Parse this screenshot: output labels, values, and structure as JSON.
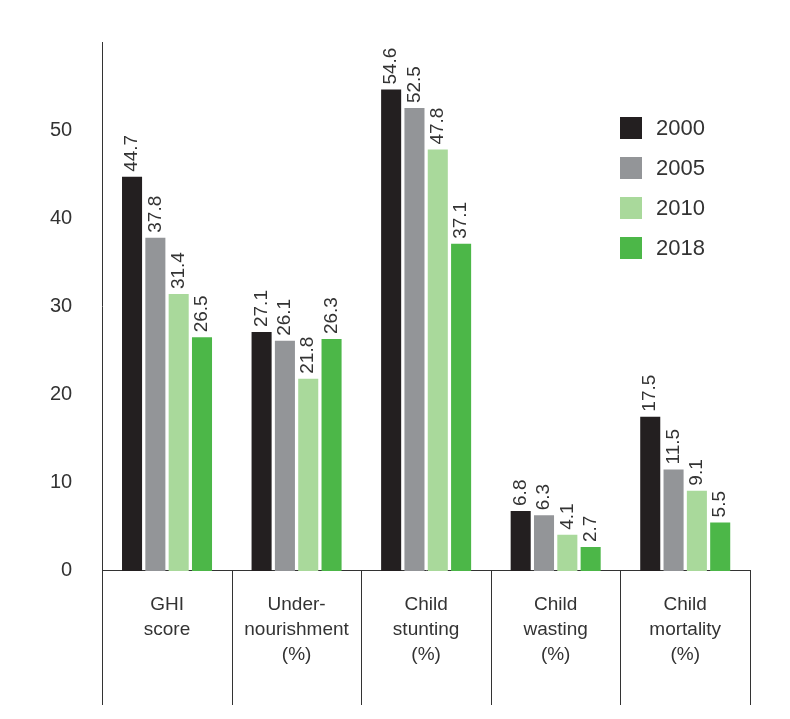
{
  "chart_data": {
    "type": "bar",
    "categories": [
      "GHI\nscore",
      "Under-\nnourishment\n(%)",
      "Child\nstunting\n(%)",
      "Child\nwasting\n(%)",
      "Child\nmortality\n(%)"
    ],
    "series": [
      {
        "name": "2000",
        "color": "#231f20",
        "values": [
          44.7,
          27.1,
          54.6,
          6.8,
          17.5
        ]
      },
      {
        "name": "2005",
        "color": "#939598",
        "values": [
          37.8,
          26.1,
          52.5,
          6.3,
          11.5
        ]
      },
      {
        "name": "2010",
        "color": "#a9d99b",
        "values": [
          31.4,
          21.8,
          47.8,
          4.1,
          9.1
        ]
      },
      {
        "name": "2018",
        "color": "#4cb748",
        "values": [
          26.5,
          26.3,
          37.1,
          2.7,
          5.5
        ]
      }
    ],
    "ylim": [
      0,
      60
    ],
    "yticks": [
      0,
      10,
      20,
      30,
      40,
      50
    ],
    "grid": false,
    "legend": "upper right",
    "data_labels": true
  }
}
